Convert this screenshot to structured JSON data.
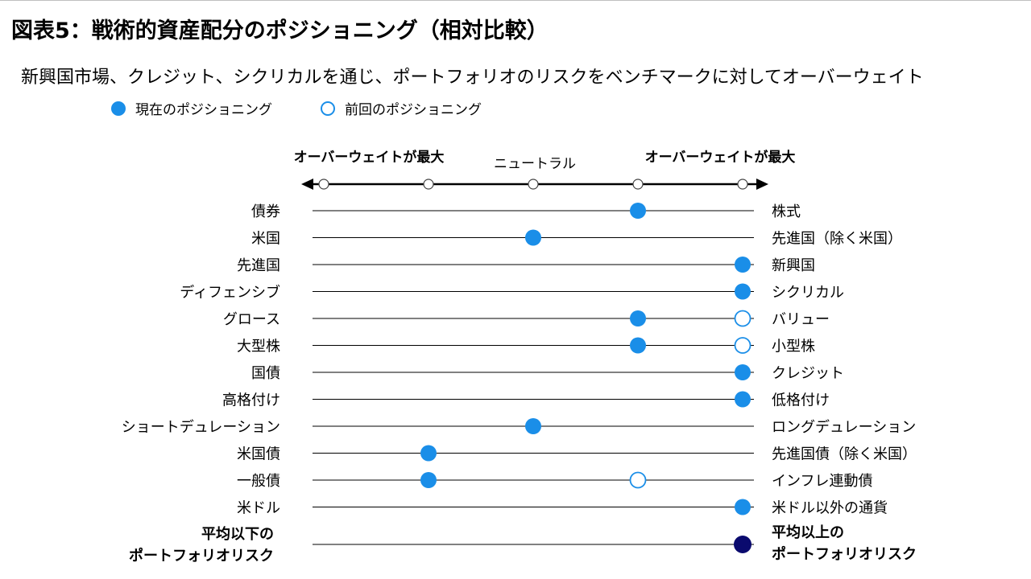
{
  "title": "図表5：戦術的資産配分のポジショニング（相対比較）",
  "subtitle": "新興国市場、クレジット、シクリカルを通じ、ポートフォリオのリスクをベンチマークに対してオーバーウェイト",
  "legend": {
    "current": "現在のポジショニング",
    "previous": "前回のポジショニング"
  },
  "colors": {
    "current": "#1a8ee8",
    "previous_outline": "#1a8ee8",
    "summary": "#0a0a6e",
    "line": "#000000"
  },
  "chart_data": {
    "type": "scatter",
    "scale_labels": {
      "left": "オーバーウェイトが最大",
      "center": "ニュートラル",
      "right": "オーバーウェイトが最大"
    },
    "scale": [
      -2,
      -1,
      0,
      1,
      2
    ],
    "rows": [
      {
        "left": "債券",
        "right": "株式",
        "current": 1,
        "previous": null
      },
      {
        "left": "米国",
        "right": "先進国（除く米国）",
        "current": 0,
        "previous": null
      },
      {
        "left": "先進国",
        "right": "新興国",
        "current": 2,
        "previous": null
      },
      {
        "left": "ディフェンシブ",
        "right": "シクリカル",
        "current": 2,
        "previous": null
      },
      {
        "left": "グロース",
        "right": "バリュー",
        "current": 1,
        "previous": 2
      },
      {
        "left": "大型株",
        "right": "小型株",
        "current": 1,
        "previous": 2
      },
      {
        "left": "国債",
        "right": "クレジット",
        "current": 2,
        "previous": null
      },
      {
        "left": "高格付け",
        "right": "低格付け",
        "current": 2,
        "previous": null
      },
      {
        "left": "ショートデュレーション",
        "right": "ロングデュレーション",
        "current": 0,
        "previous": null
      },
      {
        "left": "米国債",
        "right": "先進国債（除く米国）",
        "current": -1,
        "previous": null
      },
      {
        "left": "一般債",
        "right": "インフレ連動債",
        "current": -1,
        "previous": 1
      },
      {
        "left": "米ドル",
        "right": "米ドル以外の通貨",
        "current": 2,
        "previous": null
      }
    ],
    "summary_row": {
      "left": [
        "平均以下の",
        "ポートフォリオリスク"
      ],
      "right": [
        "平均以上の",
        "ポートフォリオリスク"
      ],
      "current": 2
    }
  }
}
